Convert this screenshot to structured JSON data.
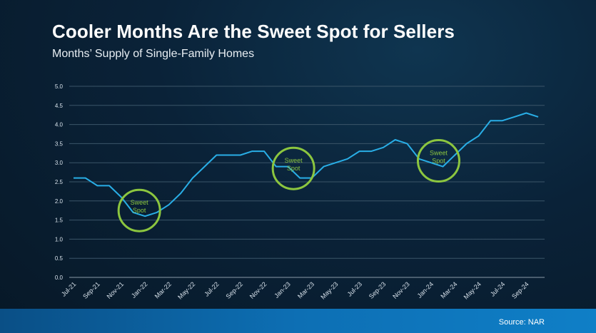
{
  "header": {
    "title": "Cooler Months Are the Sweet Spot for Sellers",
    "subtitle": "Months’ Supply of Single-Family Homes"
  },
  "footer": {
    "source": "Source: NAR"
  },
  "colors": {
    "line": "#29aee6",
    "accent": "#8cc63f",
    "grid": "#3b5568"
  },
  "chart_data": {
    "type": "line",
    "title": "Cooler Months Are the Sweet Spot for Sellers",
    "subtitle": "Months’ Supply of Single-Family Homes",
    "xlabel": "",
    "ylabel": "",
    "ylim": [
      0,
      5
    ],
    "y_ticks": [
      "0.0",
      "0.5",
      "1.0",
      "1.5",
      "2.0",
      "2.5",
      "3.0",
      "3.5",
      "4.0",
      "4.5",
      "5.0"
    ],
    "grid": true,
    "categories": [
      "Jul-21",
      "Aug-21",
      "Sep-21",
      "Oct-21",
      "Nov-21",
      "Dec-21",
      "Jan-22",
      "Feb-22",
      "Mar-22",
      "Apr-22",
      "May-22",
      "Jun-22",
      "Jul-22",
      "Aug-22",
      "Sep-22",
      "Oct-22",
      "Nov-22",
      "Dec-22",
      "Jan-23",
      "Feb-23",
      "Mar-23",
      "Apr-23",
      "May-23",
      "Jun-23",
      "Jul-23",
      "Aug-23",
      "Sep-23",
      "Oct-23",
      "Nov-23",
      "Dec-23",
      "Jan-24",
      "Feb-24",
      "Mar-24",
      "Apr-24",
      "May-24",
      "Jun-24",
      "Jul-24",
      "Aug-24",
      "Sep-24",
      "Oct-24"
    ],
    "x_tick_labels": [
      "Jul-21",
      "Sep-21",
      "Nov-21",
      "Jan-22",
      "Mar-22",
      "May-22",
      "Jul-22",
      "Sep-22",
      "Nov-22",
      "Jan-23",
      "Mar-23",
      "May-23",
      "Jul-23",
      "Sep-23",
      "Nov-23",
      "Jan-24",
      "Mar-24",
      "May-24",
      "Jul-24",
      "Sep-24"
    ],
    "series": [
      {
        "values": [
          2.6,
          2.6,
          2.4,
          2.4,
          2.1,
          1.7,
          1.6,
          1.7,
          1.9,
          2.2,
          2.6,
          2.9,
          3.2,
          3.2,
          3.2,
          3.3,
          3.3,
          2.9,
          2.9,
          2.6,
          2.6,
          2.9,
          3.0,
          3.1,
          3.3,
          3.3,
          3.4,
          3.6,
          3.5,
          3.1,
          3.0,
          2.9,
          3.2,
          3.5,
          3.7,
          4.1,
          4.1,
          4.2,
          4.3,
          4.2
        ]
      }
    ],
    "annotations": [
      {
        "text": "Sweet\nSpot",
        "category": "Jan-22",
        "value": 1.75
      },
      {
        "text": "Sweet\nSpot",
        "category": "Feb-23",
        "value": 2.85
      },
      {
        "text": "Sweet\nSpot",
        "category": "Feb-24",
        "value": 3.05
      }
    ]
  }
}
